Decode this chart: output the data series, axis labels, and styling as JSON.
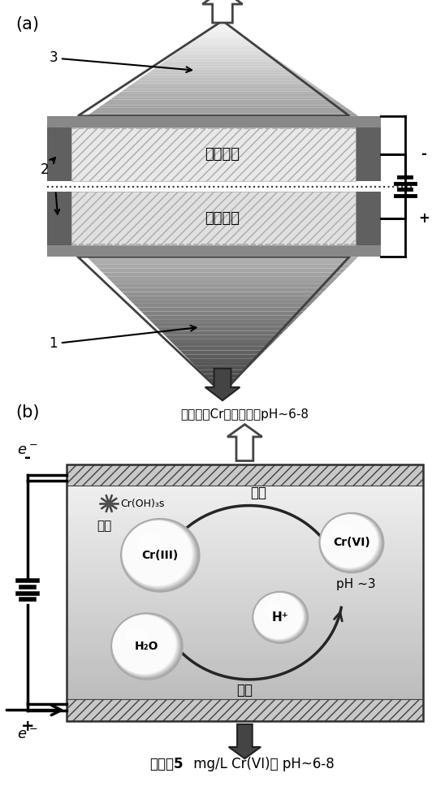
{
  "fig_width": 5.48,
  "fig_height": 10.0,
  "dpi": 100,
  "bg_color": "#ffffff",
  "panel_a_label": "(a)",
  "panel_b_label": "(b)",
  "cathode_label": "后置阴极",
  "anode_label": "前置阳极",
  "num1": "1",
  "num2": "2",
  "num3": "3",
  "outflow_text": "出水：无Cr离子检出、pH~6-8",
  "inflow_label": "进水：",
  "inflow_bold": "5",
  "inflow_rest": " mg/L Cr(VI)、 pH~6-8",
  "crIII_text": "Cr(III)",
  "crVI_text": "Cr(VI)",
  "h2o_text": "H₂O",
  "hp_text": "H⁺",
  "ph3_text": "pH ~3",
  "reduction_text": "还原",
  "oxidation_text": "氧化",
  "precipitate_text": "沉淠",
  "croh_text": "Cr(OH)₃s",
  "minus_sign": "-",
  "plus_sign": "+"
}
